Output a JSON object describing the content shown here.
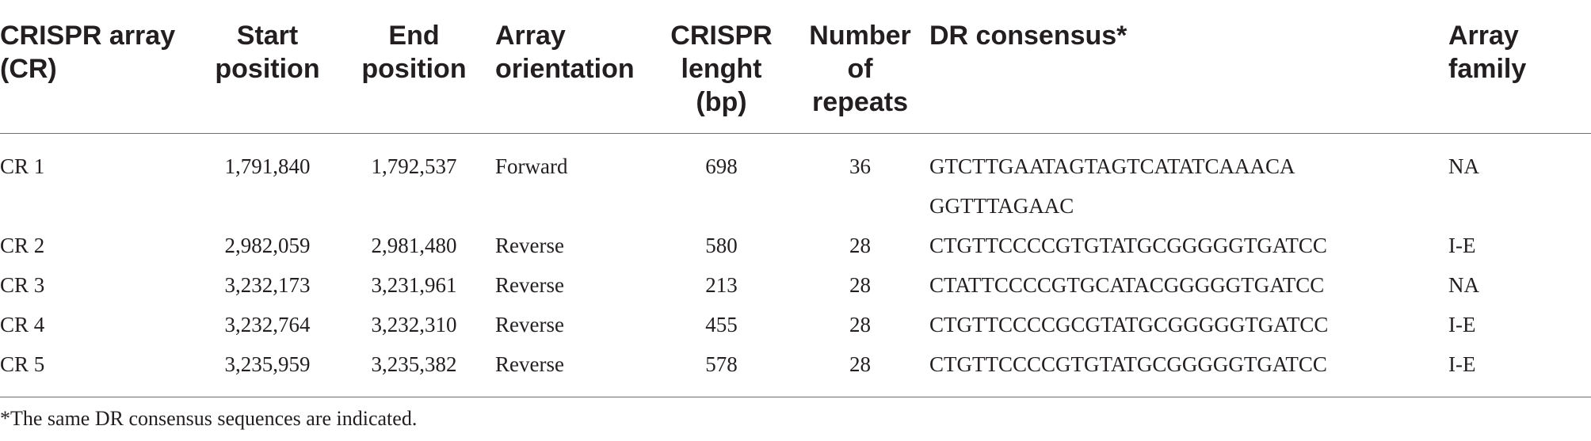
{
  "table": {
    "headers": [
      {
        "line1": "CRISPR array",
        "line2": "(CR)",
        "line3": ""
      },
      {
        "line1": "Start",
        "line2": "position",
        "line3": ""
      },
      {
        "line1": "End",
        "line2": "position",
        "line3": ""
      },
      {
        "line1": "Array",
        "line2": "orientation",
        "line3": ""
      },
      {
        "line1": "CRISPR",
        "line2": "lenght",
        "line3": "(bp)"
      },
      {
        "line1": "Number",
        "line2": "of",
        "line3": "repeats"
      },
      {
        "line1": "DR consensus*",
        "line2": "",
        "line3": ""
      },
      {
        "line1": "Array",
        "line2": "family",
        "line3": ""
      }
    ],
    "rows": [
      {
        "array": "CR 1",
        "start": "1,791,840",
        "end": "1,792,537",
        "orientation": "Forward",
        "length": "698",
        "repeats": "36",
        "dr_line1": "GTCTTGAATAGTAGTCATATCAAACA",
        "dr_line2": "GGTTTAGAAC",
        "family": "NA"
      },
      {
        "array": "CR 2",
        "start": "2,982,059",
        "end": "2,981,480",
        "orientation": "Reverse",
        "length": "580",
        "repeats": "28",
        "dr_line1": "CTGTTCCCCGTGTATGCGGGGGTGATCC",
        "dr_line2": "",
        "family": "I-E"
      },
      {
        "array": "CR 3",
        "start": "3,232,173",
        "end": "3,231,961",
        "orientation": "Reverse",
        "length": "213",
        "repeats": "28",
        "dr_line1": "CTATTCCCCGTGCATACGGGGGTGATCC",
        "dr_line2": "",
        "family": "NA"
      },
      {
        "array": "CR 4",
        "start": "3,232,764",
        "end": "3,232,310",
        "orientation": "Reverse",
        "length": "455",
        "repeats": "28",
        "dr_line1": "CTGTTCCCCGCGTATGCGGGGGTGATCC",
        "dr_line2": "",
        "family": "I-E"
      },
      {
        "array": "CR 5",
        "start": "3,235,959",
        "end": "3,235,382",
        "orientation": "Reverse",
        "length": "578",
        "repeats": "28",
        "dr_line1": "CTGTTCCCCGTGTATGCGGGGGTGATCC",
        "dr_line2": "",
        "family": "I-E"
      }
    ]
  },
  "footnote": "*The same DR consensus sequences are indicated."
}
